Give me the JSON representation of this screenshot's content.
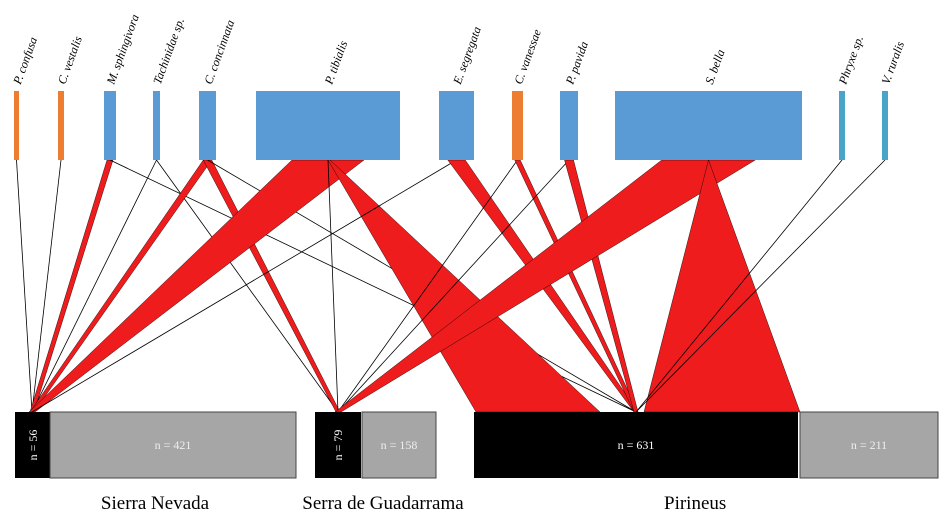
{
  "colors": {
    "host_blue": "#5b9bd5",
    "host_orange": "#ed7d31",
    "host_teal": "#4aa3c8",
    "link_red": "#ee1c1c",
    "link_line": "#000000",
    "parasitized": "#000000",
    "unparasitized": "#a6a6a6"
  },
  "hosts": [
    {
      "id": "pconf",
      "name": "P. confusa",
      "color": "orange"
    },
    {
      "id": "cvest",
      "name": "C. vestalis",
      "color": "orange"
    },
    {
      "id": "msph",
      "name": "M. sphingivora",
      "color": "blue"
    },
    {
      "id": "tach",
      "name": "Tachinidae sp.",
      "color": "blue"
    },
    {
      "id": "cconc",
      "name": "C. concinnata",
      "color": "blue"
    },
    {
      "id": "ptib",
      "name": "P. tibialis",
      "color": "blue"
    },
    {
      "id": "eseg",
      "name": "E. segregata",
      "color": "blue"
    },
    {
      "id": "cvan",
      "name": "C. vanessae",
      "color": "orange"
    },
    {
      "id": "ppav",
      "name": "P. pavida",
      "color": "blue"
    },
    {
      "id": "sbel",
      "name": "S. bella",
      "color": "blue"
    },
    {
      "id": "phyx",
      "name": "Phryxe sp.",
      "color": "teal"
    },
    {
      "id": "vrur",
      "name": "V. ruralis",
      "color": "teal"
    }
  ],
  "regions": [
    {
      "id": "sn",
      "name": "Sierra Nevada",
      "parasitized_label": "n = 56",
      "unparasitized_label": "n = 421"
    },
    {
      "id": "sg",
      "name": "Serra de Guadarrama",
      "parasitized_label": "n = 79",
      "unparasitized_label": "n = 158"
    },
    {
      "id": "pi",
      "name": "Pirineus",
      "parasitized_label": "n = 631",
      "unparasitized_label": "n = 211"
    }
  ],
  "links": [
    {
      "host": "pconf",
      "region": "sn",
      "kind": "line"
    },
    {
      "host": "cvest",
      "region": "sn",
      "kind": "line"
    },
    {
      "host": "msph",
      "region": "sn",
      "kind": "band"
    },
    {
      "host": "msph",
      "region": "pi",
      "kind": "line"
    },
    {
      "host": "tach",
      "region": "sn",
      "kind": "line"
    },
    {
      "host": "tach",
      "region": "sg",
      "kind": "line"
    },
    {
      "host": "cconc",
      "region": "sn",
      "kind": "band"
    },
    {
      "host": "cconc",
      "region": "sg",
      "kind": "band"
    },
    {
      "host": "cconc",
      "region": "pi",
      "kind": "line"
    },
    {
      "host": "ptib",
      "region": "sn",
      "kind": "band"
    },
    {
      "host": "ptib",
      "region": "sg",
      "kind": "line"
    },
    {
      "host": "ptib",
      "region": "pi",
      "kind": "band"
    },
    {
      "host": "eseg",
      "region": "sn",
      "kind": "line"
    },
    {
      "host": "eseg",
      "region": "pi",
      "kind": "band"
    },
    {
      "host": "cvan",
      "region": "sg",
      "kind": "line"
    },
    {
      "host": "cvan",
      "region": "pi",
      "kind": "band"
    },
    {
      "host": "ppav",
      "region": "sg",
      "kind": "line"
    },
    {
      "host": "ppav",
      "region": "pi",
      "kind": "band"
    },
    {
      "host": "sbel",
      "region": "sg",
      "kind": "band"
    },
    {
      "host": "sbel",
      "region": "pi",
      "kind": "band"
    },
    {
      "host": "phyx",
      "region": "pi",
      "kind": "line"
    },
    {
      "host": "vrur",
      "region": "pi",
      "kind": "line"
    }
  ]
}
